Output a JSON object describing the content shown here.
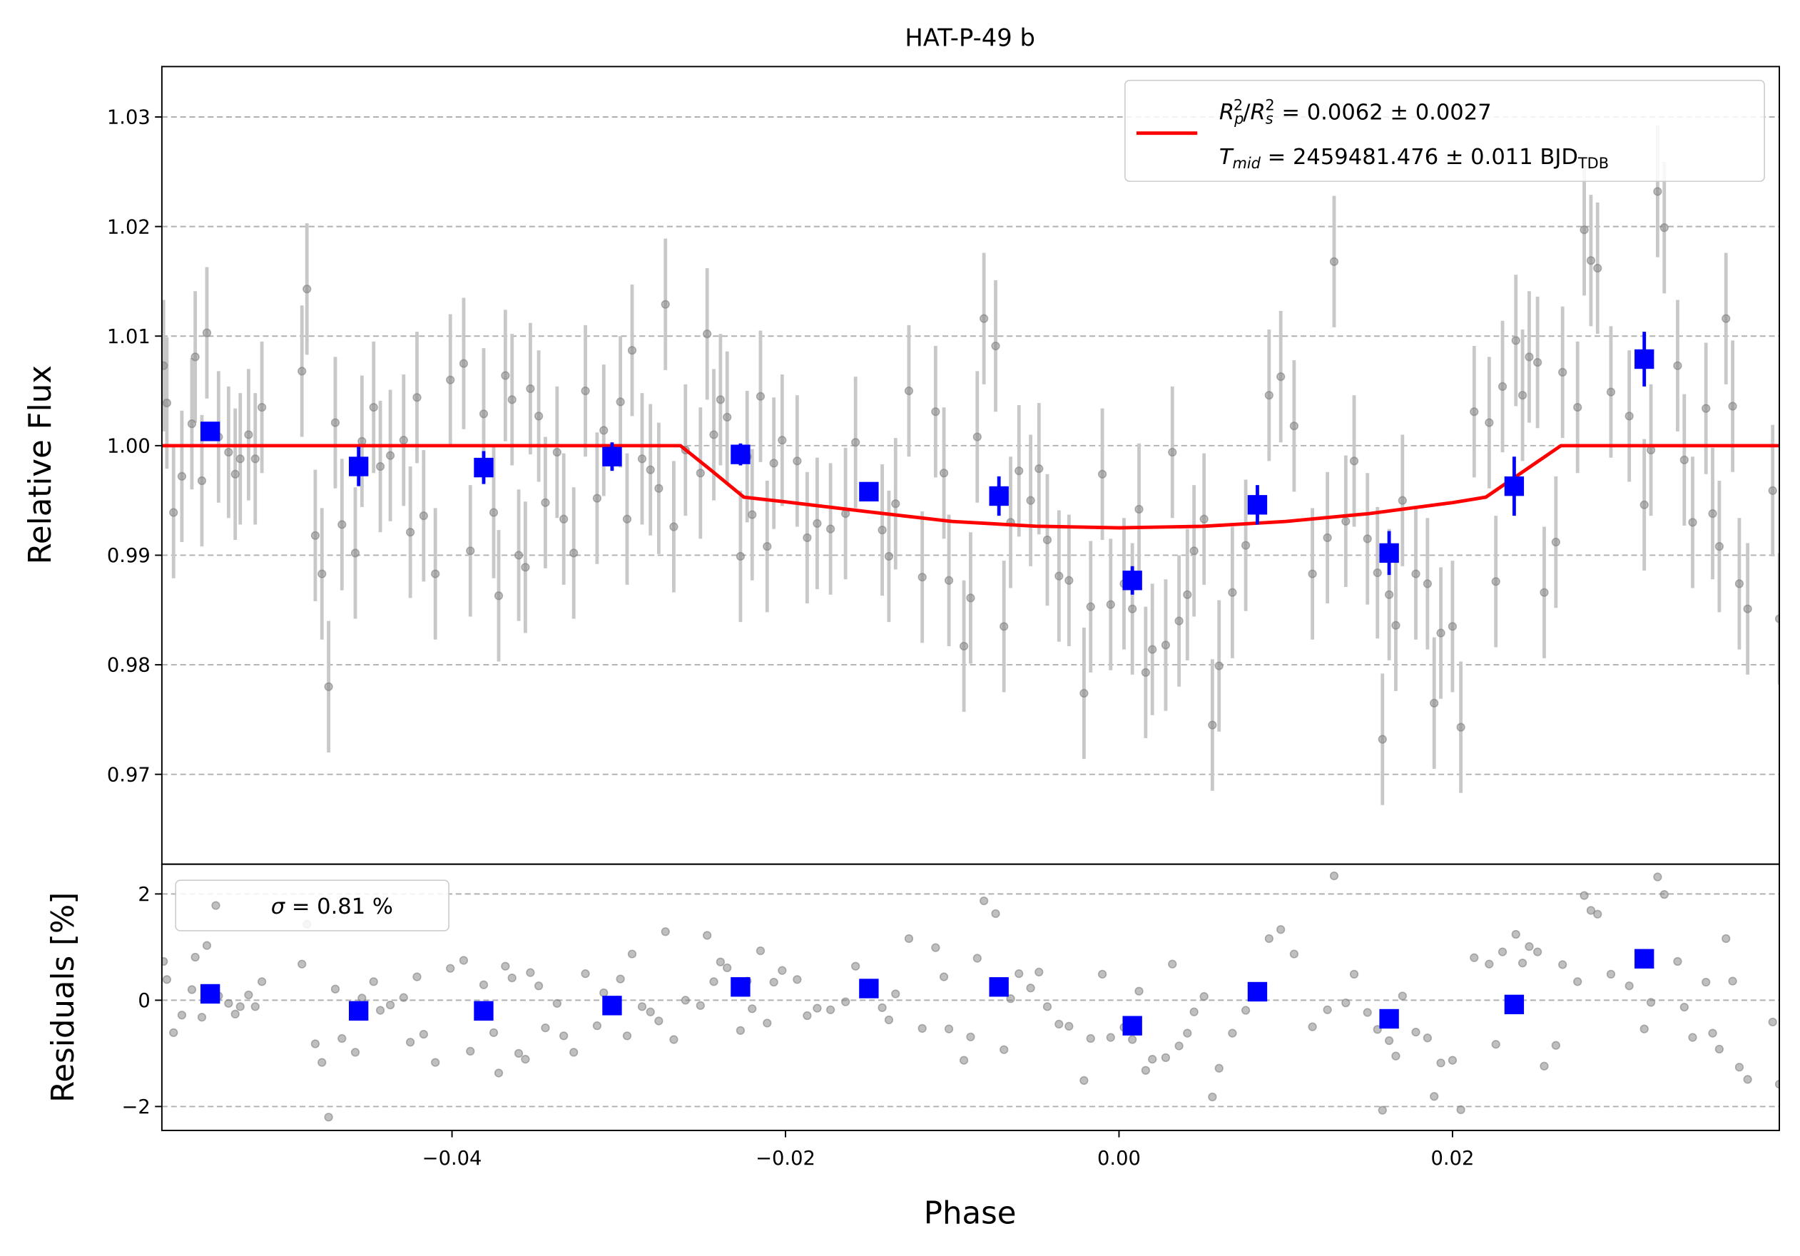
{
  "chart_data": [
    {
      "type": "scatter",
      "title": "HAT-P-49 b",
      "ylabel": "Relative Flux",
      "xlim": [
        -0.0574,
        0.0396
      ],
      "ylim": [
        0.9618,
        1.0346
      ],
      "yticks": [
        0.97,
        0.98,
        0.99,
        {
          "value": 1.0,
          "label": "1.00"
        },
        1.01,
        1.02,
        1.03
      ],
      "grid": true,
      "points": {
        "color": "#808080",
        "errcolor": "#c8c8c8",
        "yerr": 0.006,
        "x": [
          -0.0573,
          -0.0571,
          -0.0567,
          -0.0562,
          -0.0556,
          -0.0554,
          -0.055,
          -0.0547,
          -0.054,
          -0.0534,
          -0.053,
          -0.0527,
          -0.0522,
          -0.0518,
          -0.0514,
          -0.049,
          -0.0487,
          -0.0482,
          -0.0478,
          -0.0474,
          -0.047,
          -0.0466,
          -0.0458,
          -0.0454,
          -0.0447,
          -0.0443,
          -0.0437,
          -0.0429,
          -0.0425,
          -0.0421,
          -0.0417,
          -0.041,
          -0.0401,
          -0.0393,
          -0.0389,
          -0.0381,
          -0.0375,
          -0.0372,
          -0.0368,
          -0.0364,
          -0.036,
          -0.0356,
          -0.0353,
          -0.0348,
          -0.0344,
          -0.0337,
          -0.0333,
          -0.0327,
          -0.032,
          -0.0313,
          -0.0309,
          -0.0299,
          -0.0295,
          -0.0292,
          -0.0286,
          -0.0281,
          -0.0276,
          -0.0272,
          -0.0267,
          -0.026,
          -0.0251,
          -0.0247,
          -0.0243,
          -0.0239,
          -0.0235,
          -0.0227,
          -0.0223,
          -0.022,
          -0.0215,
          -0.0211,
          -0.0207,
          -0.0202,
          -0.0193,
          -0.0187,
          -0.0181,
          -0.0173,
          -0.0164,
          -0.0158,
          -0.0142,
          -0.0138,
          -0.0134,
          -0.0126,
          -0.0118,
          -0.011,
          -0.0105,
          -0.0102,
          -0.0093,
          -0.0089,
          -0.0085,
          -0.0081,
          -0.0074,
          -0.0069,
          -0.0065,
          -0.006,
          -0.0053,
          -0.0048,
          -0.0043,
          -0.0036,
          -0.003,
          -0.0021,
          -0.0017,
          -0.001,
          -0.0005,
          0.0003,
          0.0008,
          0.0012,
          0.0016,
          0.002,
          0.0028,
          0.0032,
          0.0036,
          0.0041,
          0.0045,
          0.0051,
          0.0056,
          0.006,
          0.0068,
          0.0076,
          0.009,
          0.0097,
          0.0105,
          0.0116,
          0.0125,
          0.0129,
          0.0136,
          0.0141,
          0.0149,
          0.0155,
          0.0158,
          0.0162,
          0.0166,
          0.017,
          0.0178,
          0.0185,
          0.0189,
          0.0193,
          0.02,
          0.0205,
          0.0213,
          0.0222,
          0.0226,
          0.023,
          0.0238,
          0.0242,
          0.0246,
          0.0251,
          0.0255,
          0.0262,
          0.0266,
          0.0275,
          0.0279,
          0.0283,
          0.0287,
          0.0295,
          0.0306,
          0.0315,
          0.0319,
          0.0323,
          0.0327,
          0.0335,
          0.0339,
          0.0344,
          0.0352,
          0.0356,
          0.036,
          0.0364,
          0.0368,
          0.0372,
          0.0377,
          0.0392,
          0.0396
        ],
        "y": [
          1.0073,
          1.0039,
          0.9939,
          0.9972,
          1.002,
          1.0081,
          0.9968,
          1.0103,
          1.0008,
          0.9994,
          0.9974,
          0.9988,
          1.001,
          0.9988,
          1.0035,
          1.0068,
          1.0143,
          0.9918,
          0.9883,
          0.978,
          1.0021,
          0.9928,
          0.9902,
          1.0004,
          1.0035,
          0.9981,
          0.9991,
          1.0005,
          0.9921,
          1.0044,
          0.9936,
          0.9883,
          1.006,
          1.0075,
          0.9904,
          1.0029,
          0.9939,
          0.9863,
          1.0064,
          1.0042,
          0.99,
          0.9889,
          1.0052,
          1.0027,
          0.9948,
          0.9994,
          0.9933,
          0.9902,
          1.005,
          0.9952,
          1.0014,
          1.004,
          0.9933,
          1.0087,
          0.9988,
          0.9978,
          0.9961,
          1.0129,
          0.9926,
          0.9996,
          0.9975,
          1.0102,
          1.001,
          1.0042,
          1.0026,
          0.9899,
          0.999,
          0.9937,
          1.0045,
          0.9908,
          0.9984,
          1.0005,
          0.9986,
          0.9916,
          0.9929,
          0.9924,
          0.9938,
          1.0003,
          0.9923,
          0.9899,
          0.9947,
          1.005,
          0.988,
          1.0031,
          0.9975,
          0.9877,
          0.9817,
          0.9861,
          1.0008,
          1.0116,
          1.0091,
          0.9835,
          0.993,
          0.9977,
          0.995,
          0.9979,
          0.9914,
          0.9881,
          0.9877,
          0.9774,
          0.9853,
          0.9974,
          0.9855,
          0.9874,
          0.9851,
          0.9942,
          0.9793,
          0.9814,
          0.9818,
          0.9994,
          0.984,
          0.9864,
          0.9904,
          0.9933,
          0.9745,
          0.9799,
          0.9866,
          0.9909,
          1.0046,
          1.0063,
          1.0018,
          0.9883,
          0.9916,
          1.0168,
          0.9931,
          0.9986,
          0.9915,
          0.9884,
          0.9732,
          0.9864,
          0.9836,
          0.995,
          0.9883,
          0.9874,
          0.9765,
          0.9829,
          0.9835,
          0.9743,
          1.0031,
          1.0021,
          0.9876,
          1.0054,
          1.0096,
          1.0046,
          1.0081,
          1.0076,
          0.9866,
          0.9912,
          1.0067,
          1.0035,
          1.0197,
          1.0169,
          1.0162,
          1.0049,
          1.0027,
          0.9946,
          0.9996,
          1.0232,
          1.0199,
          1.0073,
          0.9987,
          0.993,
          1.0034,
          0.9938,
          0.9908,
          1.0116,
          1.0036,
          0.9874,
          0.9851,
          0.9959,
          0.9842
        ]
      },
      "binned": {
        "color": "#0000ff",
        "x": [
          -0.0545,
          -0.0456,
          -0.0381,
          -0.0304,
          -0.0227,
          -0.015,
          -0.0072,
          0.0008,
          0.0083,
          0.0162,
          0.0237,
          0.0315
        ],
        "y": [
          1.0013,
          0.9981,
          0.998,
          0.999,
          0.9992,
          0.9958,
          0.9954,
          0.9877,
          0.9946,
          0.9902,
          0.9963,
          1.0079
        ],
        "err": [
          0.0008,
          0.0018,
          0.0015,
          0.0013,
          0.001,
          0.0008,
          0.0018,
          0.0013,
          0.0018,
          0.002,
          0.0027,
          0.0025
        ]
      },
      "model": {
        "color": "#ff0000",
        "x": [
          -0.0574,
          -0.0263,
          -0.0245,
          -0.0225,
          -0.02,
          -0.015,
          -0.01,
          -0.005,
          0,
          0.005,
          0.01,
          0.015,
          0.02,
          0.022,
          0.0243,
          0.0265,
          0.0396
        ],
        "y": [
          1,
          1,
          0.9978,
          0.9953,
          0.99487,
          0.99396,
          0.99308,
          0.99265,
          0.9925,
          0.99264,
          0.99308,
          0.9938,
          0.9948,
          0.9953,
          0.9977,
          1,
          1
        ],
        "label": [
          [
            "R",
            "p",
            "2",
            "/",
            "R",
            "s",
            "2",
            " = 0.0062 ± 0.0027"
          ],
          [
            "T",
            "mid",
            " = 2459481.476 ± 0.011 BJD",
            "TDB"
          ]
        ]
      },
      "legend": "upper right"
    },
    {
      "type": "scatter",
      "ylabel": "Residuals [%]",
      "xlabel": "Phase",
      "xlim": [
        -0.0574,
        0.0396
      ],
      "ylim": [
        -2.45,
        2.56
      ],
      "xticks": [
        {
          "value": -0.04,
          "label": "−0.04"
        },
        {
          "value": -0.02,
          "label": "−0.02"
        },
        {
          "value": 0,
          "label": "0.00"
        },
        {
          "value": 0.02,
          "label": "0.02"
        }
      ],
      "yticks": [
        {
          "value": -2,
          "label": "−2"
        },
        0,
        2
      ],
      "grid": true,
      "points": {
        "color": "#808080",
        "values": [
          0.73,
          0.39,
          -0.61,
          -0.28,
          0.2,
          0.81,
          -0.32,
          1.03,
          0.08,
          -0.06,
          -0.26,
          -0.12,
          0.1,
          -0.12,
          0.35,
          0.68,
          1.43,
          -0.82,
          -1.17,
          -2.2,
          0.21,
          -0.72,
          -0.98,
          0.04,
          0.35,
          -0.19,
          -0.09,
          0.05,
          -0.79,
          0.44,
          -0.64,
          -1.17,
          0.6,
          0.75,
          -0.96,
          0.29,
          -0.61,
          -1.37,
          0.64,
          0.42,
          -1.0,
          -1.11,
          0.52,
          0.27,
          -0.52,
          -0.06,
          -0.67,
          -0.98,
          0.5,
          -0.48,
          0.14,
          0.4,
          -0.67,
          0.87,
          -0.12,
          -0.22,
          -0.39,
          1.29,
          -0.74,
          0.0,
          -0.1,
          1.22,
          0.35,
          0.72,
          0.61,
          -0.57,
          0.36,
          -0.16,
          0.93,
          -0.43,
          0.34,
          0.56,
          0.39,
          -0.29,
          -0.15,
          -0.18,
          -0.03,
          0.64,
          -0.14,
          -0.37,
          0.12,
          1.16,
          -0.53,
          0.99,
          0.44,
          -0.54,
          -1.13,
          -0.69,
          0.79,
          1.87,
          1.63,
          -0.93,
          0.03,
          0.5,
          0.23,
          0.53,
          -0.12,
          -0.45,
          -0.49,
          -1.51,
          -0.72,
          0.49,
          -0.7,
          -0.51,
          -0.74,
          0.17,
          -1.32,
          -1.11,
          -1.08,
          0.68,
          -0.86,
          -0.62,
          -0.22,
          0.07,
          -1.82,
          -1.28,
          -0.62,
          -0.19,
          1.16,
          1.33,
          0.87,
          -0.5,
          -0.18,
          2.34,
          -0.05,
          0.49,
          -0.23,
          -0.55,
          -2.07,
          -0.76,
          -1.05,
          0.08,
          -0.6,
          -0.71,
          -1.81,
          -1.18,
          -1.13,
          -2.06,
          0.8,
          0.68,
          -0.83,
          0.91,
          1.24,
          0.7,
          1.01,
          0.91,
          -1.24,
          -0.85,
          0.67,
          0.35,
          1.97,
          1.69,
          1.62,
          0.49,
          0.27,
          -0.54,
          -0.04,
          2.32,
          1.99,
          0.73,
          -0.13,
          -0.7,
          0.34,
          -0.62,
          -0.92,
          1.16,
          0.36,
          -1.26,
          -1.49,
          -0.41,
          -1.58
        ]
      },
      "binned": {
        "color": "#0000ff",
        "values": [
          0.12,
          -0.2,
          -0.2,
          -0.1,
          0.25,
          0.22,
          0.25,
          -0.48,
          0.16,
          -0.35,
          -0.08,
          0.78
        ]
      },
      "label": [
        "σ",
        " = 0.81 %"
      ],
      "legend": "upper left"
    }
  ]
}
